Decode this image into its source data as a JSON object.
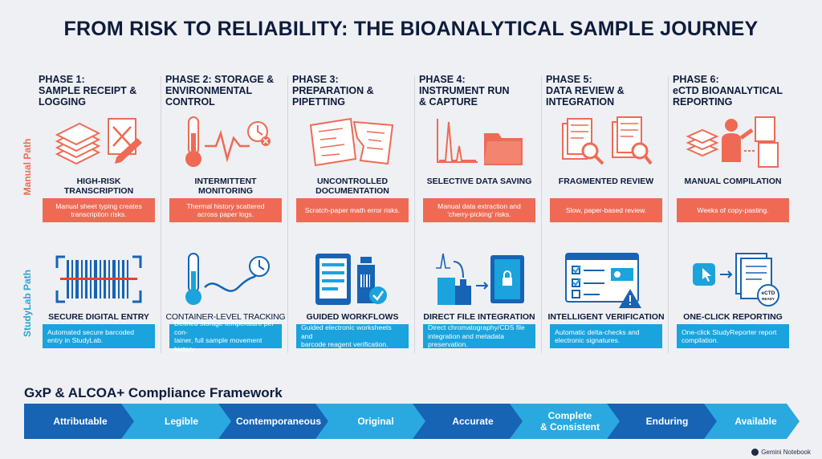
{
  "title": "FROM RISK TO RELIABILITY: THE BIOANALYTICAL SAMPLE JOURNEY",
  "side_labels": {
    "manual": "Manual Path",
    "studylab": "StudyLab Path"
  },
  "colors": {
    "manual": "#ef6a55",
    "studylab": "#1aa3dd",
    "dark_blue": "#1763b4",
    "navy": "#0e1b3d"
  },
  "phases": [
    {
      "title_lines": [
        "PHASE 1:",
        "SAMPLE RECEIPT &",
        "LOGGING"
      ],
      "manual": {
        "icon": "paper-stack-pen-icon",
        "caption_lines": [
          "HIGH-RISK",
          "TRANSCRIPTION"
        ],
        "description_lines": [
          "Manual sheet typing creates",
          "transcription risks."
        ]
      },
      "studylab": {
        "icon": "barcode-scan-icon",
        "caption_lines": [
          "SECURE DIGITAL ENTRY"
        ],
        "description_lines": [
          "Automated secure barcoded",
          "entry in StudyLab."
        ]
      }
    },
    {
      "title_lines": [
        "PHASE 2: STORAGE &",
        "ENVIRONMENTAL",
        "CONTROL"
      ],
      "manual": {
        "icon": "thermometer-clock-icon",
        "caption_lines": [
          "INTERMITTENT",
          "MONITORING"
        ],
        "description_lines": [
          "Thermal history scattered",
          "across paper logs."
        ]
      },
      "studylab": {
        "icon": "thermometer-tracking-icon",
        "caption_lines": [
          "CONTAINER-LEVEL TRACKING"
        ],
        "description_lines": [
          "Defined storage temperature per con-",
          "tainer, full sample movement history."
        ]
      }
    },
    {
      "title_lines": [
        "PHASE 3:",
        "PREPARATION &",
        "PIPETTING"
      ],
      "manual": {
        "icon": "scratch-paper-icon",
        "caption_lines": [
          "UNCONTROLLED",
          "DOCUMENTATION"
        ],
        "description_lines": [
          "Scratch-paper math error risks."
        ]
      },
      "studylab": {
        "icon": "tablet-reagent-icon",
        "caption_lines": [
          "GUIDED WORKFLOWS"
        ],
        "description_lines": [
          "Guided electronic worksheets and",
          "barcode reagent verification."
        ]
      }
    },
    {
      "title_lines": [
        "PHASE 4:",
        "INSTRUMENT RUN",
        "& CAPTURE"
      ],
      "manual": {
        "icon": "chromatogram-folder-icon",
        "caption_lines": [
          "SELECTIVE DATA SAVING"
        ],
        "description_lines": [
          "Manual data extraction and",
          "'cherry-picking' risks."
        ]
      },
      "studylab": {
        "icon": "instrument-vault-icon",
        "caption_lines": [
          "DIRECT FILE INTEGRATION"
        ],
        "description_lines": [
          "Direct chromatography/CDS file",
          "integration and metadata preservation."
        ]
      }
    },
    {
      "title_lines": [
        "PHASE 5:",
        "DATA REVIEW &",
        "INTEGRATION"
      ],
      "manual": {
        "icon": "documents-magnifier-icon",
        "caption_lines": [
          "FRAGMENTED REVIEW"
        ],
        "description_lines": [
          "Slow, paper-based review."
        ]
      },
      "studylab": {
        "icon": "checklist-warning-icon",
        "caption_lines": [
          "INTELLIGENT VERIFICATION"
        ],
        "description_lines": [
          "Automatic delta-checks and",
          "electronic signatures."
        ]
      }
    },
    {
      "title_lines": [
        "PHASE 6:",
        "eCTD BIOANALYTICAL",
        "REPORTING"
      ],
      "manual": {
        "icon": "person-documents-icon",
        "caption_lines": [
          "MANUAL COMPILATION"
        ],
        "description_lines": [
          "Weeks of copy-pasting."
        ]
      },
      "studylab": {
        "icon": "one-click-report-icon",
        "caption_lines": [
          "ONE-CLICK REPORTING"
        ],
        "description_lines": [
          "One-click StudyReporter report",
          "compilation."
        ],
        "seal_text": "eCTD READY"
      }
    }
  ],
  "framework": {
    "title": "GxP & ALCOA+ Compliance Framework",
    "steps": [
      {
        "lines": [
          "Attributable"
        ]
      },
      {
        "lines": [
          "Legible"
        ]
      },
      {
        "lines": [
          "Contemporaneous"
        ]
      },
      {
        "lines": [
          "Original"
        ]
      },
      {
        "lines": [
          "Accurate"
        ]
      },
      {
        "lines": [
          "Complete",
          "& Consistent"
        ]
      },
      {
        "lines": [
          "Enduring"
        ]
      },
      {
        "lines": [
          "Available"
        ]
      }
    ]
  },
  "credit": "Gemini Notebook"
}
